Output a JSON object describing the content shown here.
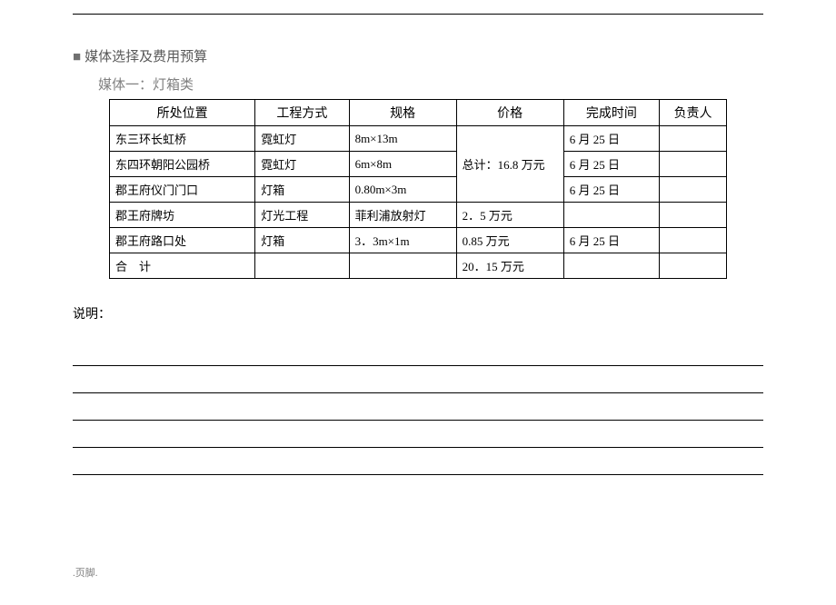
{
  "heading": "媒体选择及费用预算",
  "subheading": "媒体一：灯箱类",
  "table": {
    "headers": [
      "所处位置",
      "工程方式",
      "规格",
      "价格",
      "完成时间",
      "负责人"
    ],
    "mergedPrice": "总计：16.8 万元",
    "rows": [
      {
        "loc": "东三环长虹桥",
        "method": "霓虹灯",
        "spec": "8m×13m",
        "price": null,
        "time": "6 月 25 日",
        "person": ""
      },
      {
        "loc": "东四环朝阳公园桥",
        "method": "霓虹灯",
        "spec": "6m×8m",
        "price": null,
        "time": "6 月 25 日",
        "person": ""
      },
      {
        "loc": "郡王府仪门门口",
        "method": "灯箱",
        "spec": "0.80m×3m",
        "price": null,
        "time": "6 月 25 日",
        "person": ""
      },
      {
        "loc": "郡王府牌坊",
        "method": "灯光工程",
        "spec": "菲利浦放射灯",
        "price": "2．5 万元",
        "time": "",
        "person": ""
      },
      {
        "loc": "郡王府路口处",
        "method": "灯箱",
        "spec": "3．3m×1m",
        "price": "0.85 万元",
        "time": "6 月 25 日",
        "person": ""
      }
    ],
    "totalRow": {
      "label": "合　计",
      "value": "20．15 万元"
    }
  },
  "notesLabel": "说明：",
  "footer": ".页脚."
}
